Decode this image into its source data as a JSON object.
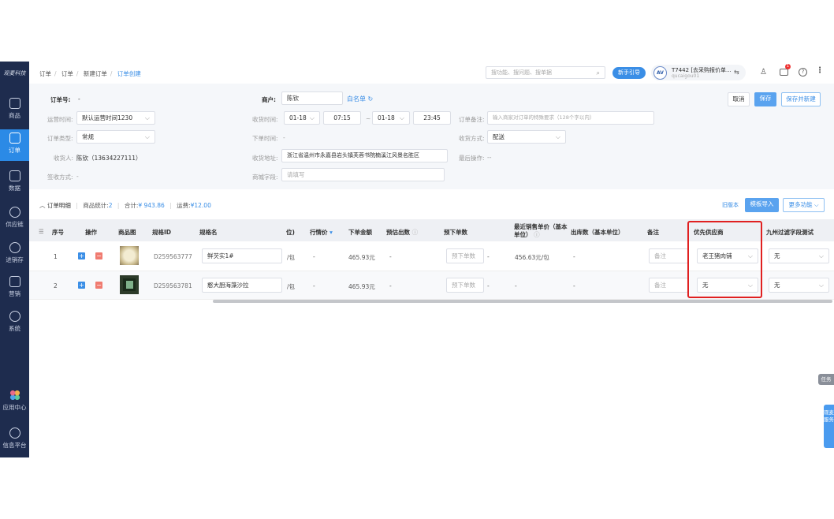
{
  "sidebar": {
    "logo": "观麦科技",
    "items": [
      {
        "label": "商品",
        "icon": "shopping-bag-icon"
      },
      {
        "label": "订单",
        "icon": "order-icon",
        "active": true
      },
      {
        "label": "数据",
        "icon": "chart-icon"
      },
      {
        "label": "供应链",
        "icon": "supply-chain-icon"
      },
      {
        "label": "进销存",
        "icon": "inventory-icon"
      },
      {
        "label": "营销",
        "icon": "tag-icon"
      },
      {
        "label": "系统",
        "icon": "gear-icon"
      },
      {
        "label": "应用中心",
        "icon": "app-center-icon"
      },
      {
        "label": "信息平台",
        "icon": "cube-icon"
      }
    ]
  },
  "breadcrumb": [
    "订单",
    "订单",
    "新建订单",
    "订单创建"
  ],
  "header": {
    "search_placeholder": "搜功能、搜问题、搜单据",
    "guide": "新手引导",
    "avatar": "AV",
    "account": "T7442 [去采购报价单...",
    "username": "qucaigou01",
    "badge": "1"
  },
  "form": {
    "order_no_label": "订单号:",
    "order_no": "-",
    "merchant_label": "商户:",
    "merchant": "陈钦",
    "whitelist": "白名单",
    "cancel": "取消",
    "save": "保存",
    "save_new": "保存并新建",
    "op_time_label": "运营时间:",
    "op_time": "默认运营时间1230",
    "recv_time_label": "收货时间:",
    "recv_date1": "01-18",
    "recv_time1": "07:15",
    "tilde": "~",
    "recv_date2": "01-18",
    "recv_time2": "23:45",
    "remark_label": "订单备注:",
    "remark_placeholder": "输入商家对订单的特殊要求（128个字以内）",
    "type_label": "订单类型:",
    "type": "常规",
    "order_time_label": "下单时间:",
    "order_time": "-",
    "recv_method_label": "收货方式:",
    "recv_method": "配送",
    "receiver_label": "收货人:",
    "receiver": "陈钦（13634227111）",
    "address_label": "收货地址:",
    "address": "浙江省温州市永嘉县岩头镇芙蓉书院楠溪江风景名胜区",
    "last_op_label": "最后操作:",
    "last_op": "--",
    "sign_label": "签收方式:",
    "sign": "-",
    "mall_label": "商城字段:",
    "mall_placeholder": "请填写"
  },
  "detail": {
    "title": "订单明细",
    "count_label": "商品统计:",
    "count": "2",
    "total_label": "合计:",
    "total": "¥ 943.86",
    "freight_label": "运费:",
    "freight": "¥12.00",
    "old_version": "旧版本",
    "import": "模板导入",
    "more": "更多功能"
  },
  "table": {
    "headers": [
      "序号",
      "操作",
      "商品图",
      "规格ID",
      "规格名",
      "位)",
      "行情价",
      "下单金额",
      "预估出数",
      "预下单数",
      "最近销售单价（基本单位）",
      "出库数（基本单位）",
      "备注",
      "优先供应商",
      "九州过滤字段测试"
    ],
    "rows": [
      {
        "no": "1",
        "spec_id": "D259563777",
        "spec_name": "鲜芡实1#",
        "unit": "/包",
        "market": "-",
        "amount": "465.93元",
        "est": "-",
        "pre_placeholder": "预下单数",
        "pre_after": "-",
        "last_price": "456.63元/包",
        "out": "-",
        "note_placeholder": "备注",
        "supplier": "老王猪肉铺",
        "jiuzhou": "无"
      },
      {
        "no": "2",
        "spec_id": "D259563781",
        "spec_name": "憨大厨海藻沙拉",
        "unit": "/包",
        "market": "-",
        "amount": "465.93元",
        "est": "-",
        "pre_placeholder": "预下单数",
        "pre_after": "-",
        "last_price": "-",
        "out": "-",
        "note_placeholder": "备注",
        "supplier": "无",
        "jiuzhou": "无"
      }
    ]
  },
  "float": {
    "task": "任务",
    "feedback": "观麦服务"
  },
  "colors": {
    "sidebar": "#1e2c4e",
    "accent": "#2b8ae6",
    "highlight": "#e02020"
  }
}
